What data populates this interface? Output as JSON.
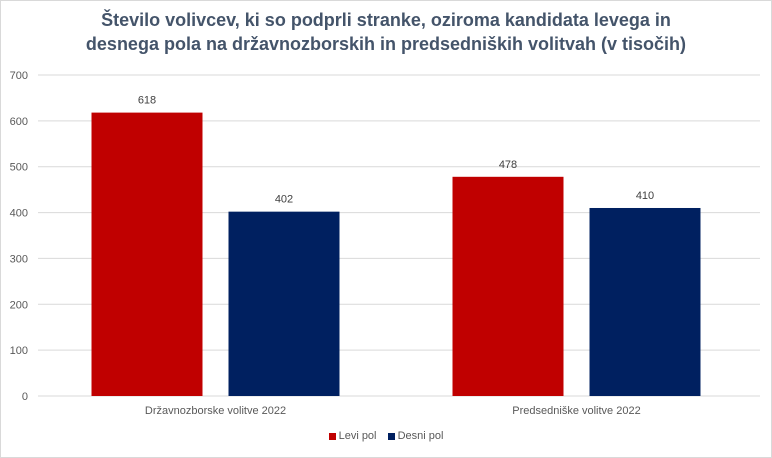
{
  "chart_data": {
    "type": "bar",
    "title": "Število volivcev, ki so podprli stranke, oziroma kandidata levega in desnega pola na državnozborskih in predsedniških volitvah (v tisočih)",
    "title_lines": [
      "Število volivcev, ki so podprli stranke, oziroma kandidata levega in",
      "desnega pola na državnozborskih in predsedniških volitvah (v tisočih)"
    ],
    "categories": [
      "Državnozborske volitve 2022",
      "Predsedniške volitve 2022"
    ],
    "series": [
      {
        "name": "Levi pol",
        "color": "#c00000",
        "values": [
          618,
          478
        ]
      },
      {
        "name": "Desni pol",
        "color": "#002060",
        "values": [
          402,
          410
        ]
      }
    ],
    "xlabel": "",
    "ylabel": "",
    "ylim": [
      0,
      700
    ],
    "yticks": [
      0,
      100,
      200,
      300,
      400,
      500,
      600,
      700
    ],
    "grid": true,
    "legend_position": "bottom",
    "data_labels": true
  }
}
